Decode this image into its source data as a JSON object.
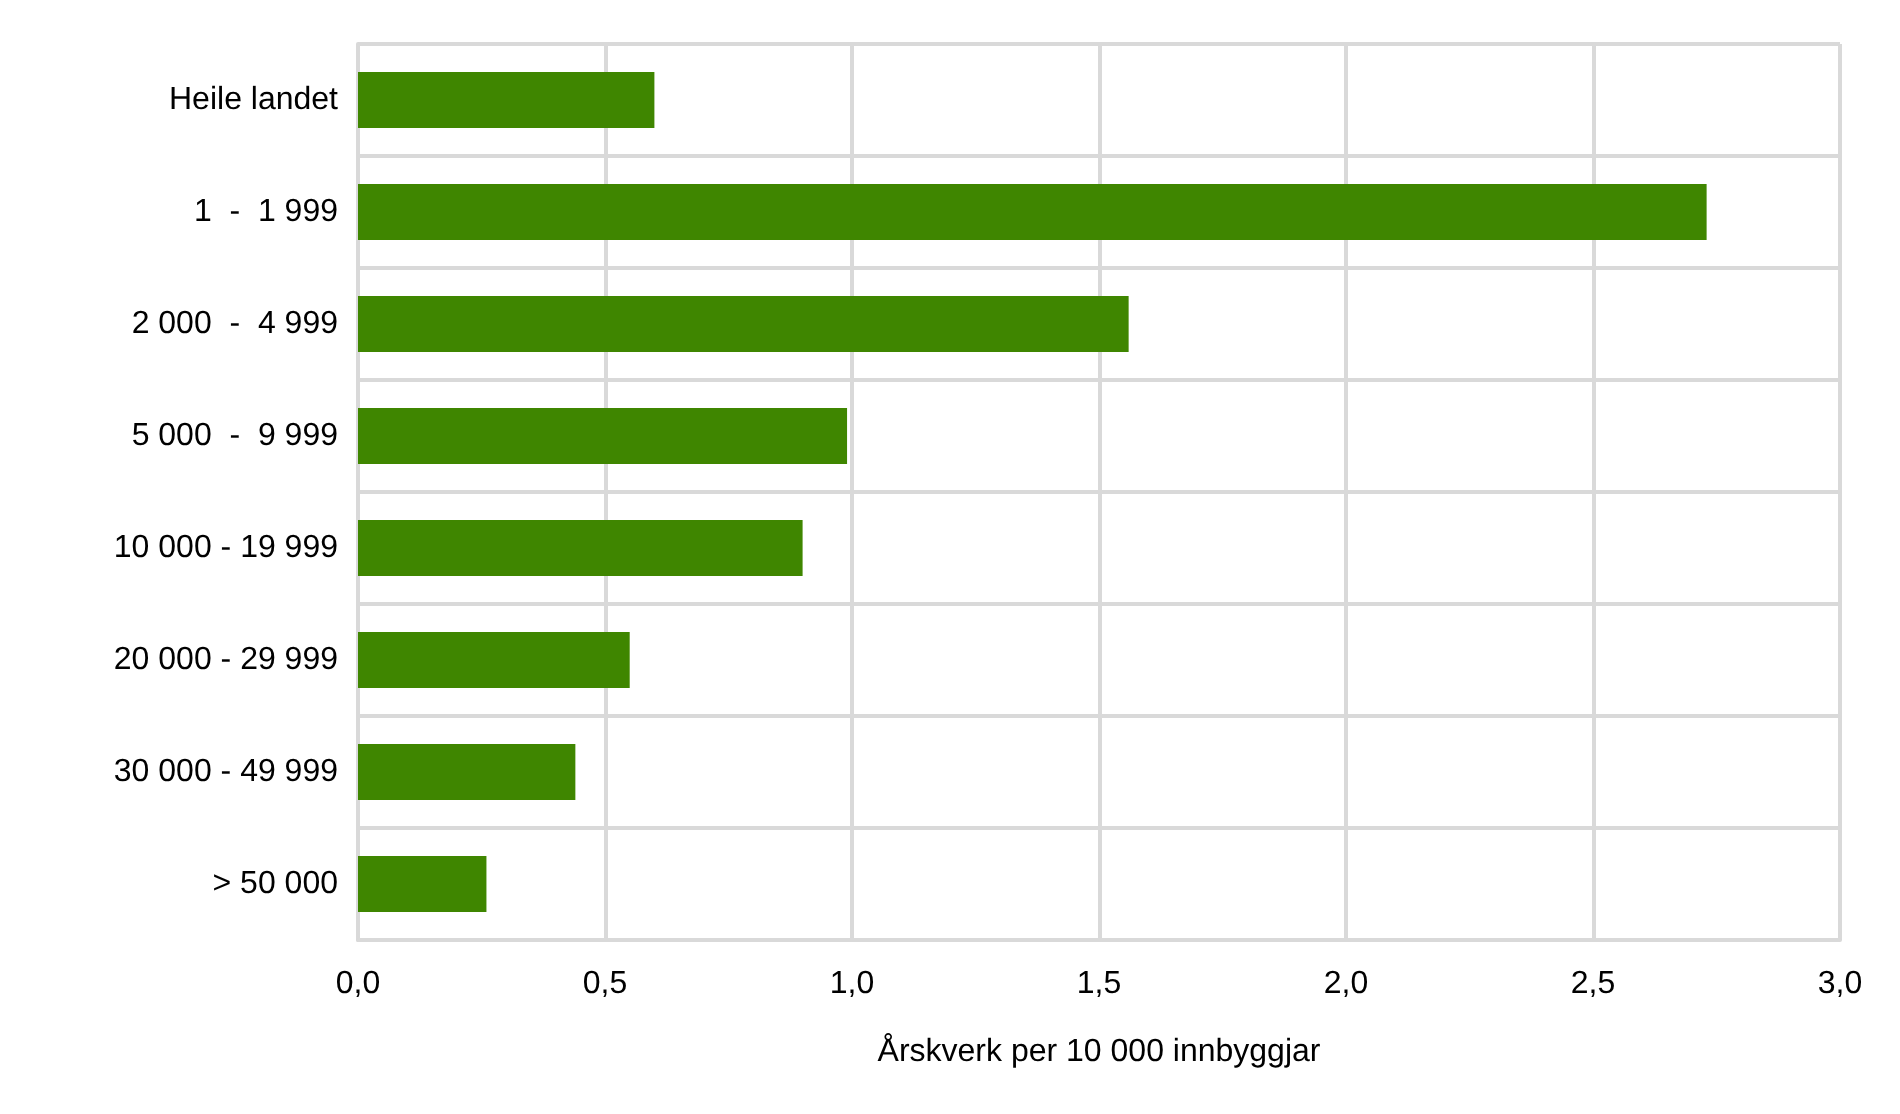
{
  "chart_data": {
    "type": "bar",
    "orientation": "horizontal",
    "xlabel": "Årskverk per 10 000 innbyggjar",
    "categories": [
      "Heile landet",
      "1  -  1 999",
      "2 000  -  4 999",
      "5 000  -  9 999",
      "10 000 - 19 999",
      "20 000 - 29 999",
      "30 000 - 49 999",
      "> 50 000"
    ],
    "values": [
      0.6,
      2.73,
      1.56,
      0.99,
      0.9,
      0.55,
      0.44,
      0.26
    ],
    "color": "#3f8600",
    "xlim": [
      0,
      3
    ],
    "xticks": [
      {
        "value": 0,
        "label": "0,0"
      },
      {
        "value": 0.5,
        "label": "0,5"
      },
      {
        "value": 1,
        "label": "1,0"
      },
      {
        "value": 1.5,
        "label": "1,5"
      },
      {
        "value": 2,
        "label": "2,0"
      },
      {
        "value": 2.5,
        "label": "2,5"
      },
      {
        "value": 3,
        "label": "3,0"
      }
    ],
    "grid": true
  }
}
